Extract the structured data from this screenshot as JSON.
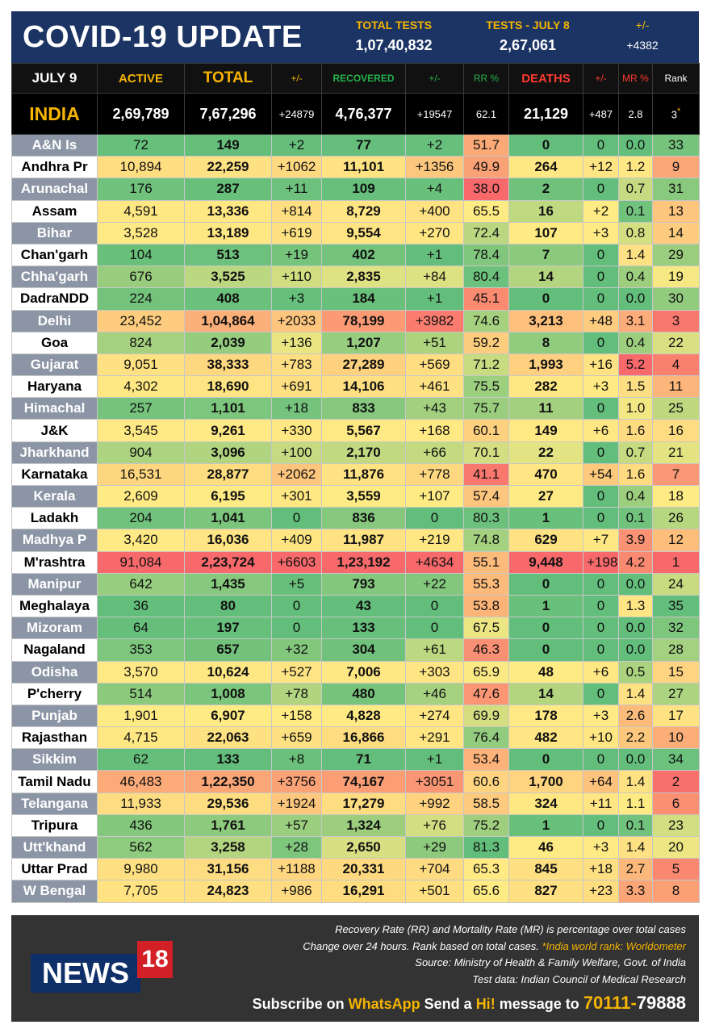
{
  "header": {
    "title": "COVID-19 UPDATE",
    "total_tests_label": "TOTAL TESTS",
    "total_tests_value": "1,07,40,832",
    "tests_day_label": "TESTS - JULY  8",
    "tests_day_value": "2,67,061",
    "change_label": "+/-",
    "change_value": "+4382"
  },
  "columns": {
    "date": "JULY 9",
    "active": "ACTIVE",
    "total": "TOTAL",
    "change": "+/-",
    "recovered": "RECOVERED",
    "recovered_change": "+/-",
    "rr": "RR %",
    "deaths": "DEATHS",
    "deaths_change": "+/-",
    "mr": "MR %",
    "rank": "Rank"
  },
  "india": {
    "name": "INDIA",
    "active": "2,69,789",
    "total": "7,67,296",
    "change": "+24879",
    "recovered": "4,76,377",
    "rec_change": "+19547",
    "rr": "62.1",
    "deaths": "21,129",
    "death_change": "+487",
    "mr": "2.8",
    "rank": "3",
    "rank_mark": "*"
  },
  "states": [
    [
      "A&N Is",
      "72",
      "149",
      "+2",
      "77",
      "+2",
      "51.7",
      "0",
      "0",
      "0.0",
      "33"
    ],
    [
      "Andhra Pr",
      "10,894",
      "22,259",
      "+1062",
      "11,101",
      "+1356",
      "49.9",
      "264",
      "+12",
      "1.2",
      "9"
    ],
    [
      "Arunachal",
      "176",
      "287",
      "+11",
      "109",
      "+4",
      "38.0",
      "2",
      "0",
      "0.7",
      "31"
    ],
    [
      "Assam",
      "4,591",
      "13,336",
      "+814",
      "8,729",
      "+400",
      "65.5",
      "16",
      "+2",
      "0.1",
      "13"
    ],
    [
      "Bihar",
      "3,528",
      "13,189",
      "+619",
      "9,554",
      "+270",
      "72.4",
      "107",
      "+3",
      "0.8",
      "14"
    ],
    [
      "Chan'garh",
      "104",
      "513",
      "+19",
      "402",
      "+1",
      "78.4",
      "7",
      "0",
      "1.4",
      "29"
    ],
    [
      "Chha'garh",
      "676",
      "3,525",
      "+110",
      "2,835",
      "+84",
      "80.4",
      "14",
      "0",
      "0.4",
      "19"
    ],
    [
      "DadraNDD",
      "224",
      "408",
      "+3",
      "184",
      "+1",
      "45.1",
      "0",
      "0",
      "0.0",
      "30"
    ],
    [
      "Delhi",
      "23,452",
      "1,04,864",
      "+2033",
      "78,199",
      "+3982",
      "74.6",
      "3,213",
      "+48",
      "3.1",
      "3"
    ],
    [
      "Goa",
      "824",
      "2,039",
      "+136",
      "1,207",
      "+51",
      "59.2",
      "8",
      "0",
      "0.4",
      "22"
    ],
    [
      "Gujarat",
      "9,051",
      "38,333",
      "+783",
      "27,289",
      "+569",
      "71.2",
      "1,993",
      "+16",
      "5.2",
      "4"
    ],
    [
      "Haryana",
      "4,302",
      "18,690",
      "+691",
      "14,106",
      "+461",
      "75.5",
      "282",
      "+3",
      "1.5",
      "11"
    ],
    [
      "Himachal",
      "257",
      "1,101",
      "+18",
      "833",
      "+43",
      "75.7",
      "11",
      "0",
      "1.0",
      "25"
    ],
    [
      "J&K",
      "3,545",
      "9,261",
      "+330",
      "5,567",
      "+168",
      "60.1",
      "149",
      "+6",
      "1.6",
      "16"
    ],
    [
      "Jharkhand",
      "904",
      "3,096",
      "+100",
      "2,170",
      "+66",
      "70.1",
      "22",
      "0",
      "0.7",
      "21"
    ],
    [
      "Karnataka",
      "16,531",
      "28,877",
      "+2062",
      "11,876",
      "+778",
      "41.1",
      "470",
      "+54",
      "1.6",
      "7"
    ],
    [
      "Kerala",
      "2,609",
      "6,195",
      "+301",
      "3,559",
      "+107",
      "57.4",
      "27",
      "0",
      "0.4",
      "18"
    ],
    [
      "Ladakh",
      "204",
      "1,041",
      "0",
      "836",
      "0",
      "80.3",
      "1",
      "0",
      "0.1",
      "26"
    ],
    [
      "Madhya P",
      "3,420",
      "16,036",
      "+409",
      "11,987",
      "+219",
      "74.8",
      "629",
      "+7",
      "3.9",
      "12"
    ],
    [
      "M'rashtra",
      "91,084",
      "2,23,724",
      "+6603",
      "1,23,192",
      "+4634",
      "55.1",
      "9,448",
      "+198",
      "4.2",
      "1"
    ],
    [
      "Manipur",
      "642",
      "1,435",
      "+5",
      "793",
      "+22",
      "55.3",
      "0",
      "0",
      "0.0",
      "24"
    ],
    [
      "Meghalaya",
      "36",
      "80",
      "0",
      "43",
      "0",
      "53.8",
      "1",
      "0",
      "1.3",
      "35"
    ],
    [
      "Mizoram",
      "64",
      "197",
      "0",
      "133",
      "0",
      "67.5",
      "0",
      "0",
      "0.0",
      "32"
    ],
    [
      "Nagaland",
      "353",
      "657",
      "+32",
      "304",
      "+61",
      "46.3",
      "0",
      "0",
      "0.0",
      "28"
    ],
    [
      "Odisha",
      "3,570",
      "10,624",
      "+527",
      "7,006",
      "+303",
      "65.9",
      "48",
      "+6",
      "0.5",
      "15"
    ],
    [
      "P'cherry",
      "514",
      "1,008",
      "+78",
      "480",
      "+46",
      "47.6",
      "14",
      "0",
      "1.4",
      "27"
    ],
    [
      "Punjab",
      "1,901",
      "6,907",
      "+158",
      "4,828",
      "+274",
      "69.9",
      "178",
      "+3",
      "2.6",
      "17"
    ],
    [
      "Rajasthan",
      "4,715",
      "22,063",
      "+659",
      "16,866",
      "+291",
      "76.4",
      "482",
      "+10",
      "2.2",
      "10"
    ],
    [
      "Sikkim",
      "62",
      "133",
      "+8",
      "71",
      "+1",
      "53.4",
      "0",
      "0",
      "0.0",
      "34"
    ],
    [
      "Tamil Nadu",
      "46,483",
      "1,22,350",
      "+3756",
      "74,167",
      "+3051",
      "60.6",
      "1,700",
      "+64",
      "1.4",
      "2"
    ],
    [
      "Telangana",
      "11,933",
      "29,536",
      "+1924",
      "17,279",
      "+992",
      "58.5",
      "324",
      "+11",
      "1.1",
      "6"
    ],
    [
      "Tripura",
      "436",
      "1,761",
      "+57",
      "1,324",
      "+76",
      "75.2",
      "1",
      "0",
      "0.1",
      "23"
    ],
    [
      "Utt'khand",
      "562",
      "3,258",
      "+28",
      "2,650",
      "+29",
      "81.3",
      "46",
      "+3",
      "1.4",
      "20"
    ],
    [
      "Uttar Prad",
      "9,980",
      "31,156",
      "+1188",
      "20,331",
      "+704",
      "65.3",
      "845",
      "+18",
      "2.7",
      "5"
    ],
    [
      "W Bengal",
      "7,705",
      "24,823",
      "+986",
      "16,291",
      "+501",
      "65.6",
      "827",
      "+23",
      "3.3",
      "8"
    ]
  ],
  "colors": {
    "header_bg": "#1b3463",
    "accent_yellow": "#f7b500",
    "recovered_green": "#25b14a",
    "deaths_red": "#ff3b30",
    "scale_green": "#63be7b",
    "scale_yellow": "#ffeb84",
    "scale_red": "#f8696b"
  },
  "footer": {
    "note1": "Recovery Rate (RR) and Mortality Rate (MR) is percentage over total cases",
    "note2a": "Change over 24 hours. Rank based on total cases. ",
    "note2b": "*India world rank: Worldometer",
    "note3": "Source: Ministry of Health & Family Welfare, Govt. of India",
    "note4": "Test data: Indian Council of Medical Research",
    "subscribe_a": "Subscribe on ",
    "subscribe_b": "WhatsApp",
    "subscribe_c": " Send a ",
    "subscribe_d": "Hi!",
    "subscribe_e": " message to ",
    "phone_a": "70111-",
    "phone_b": "79888",
    "logo_a": "NEWS",
    "logo_b": "18"
  }
}
